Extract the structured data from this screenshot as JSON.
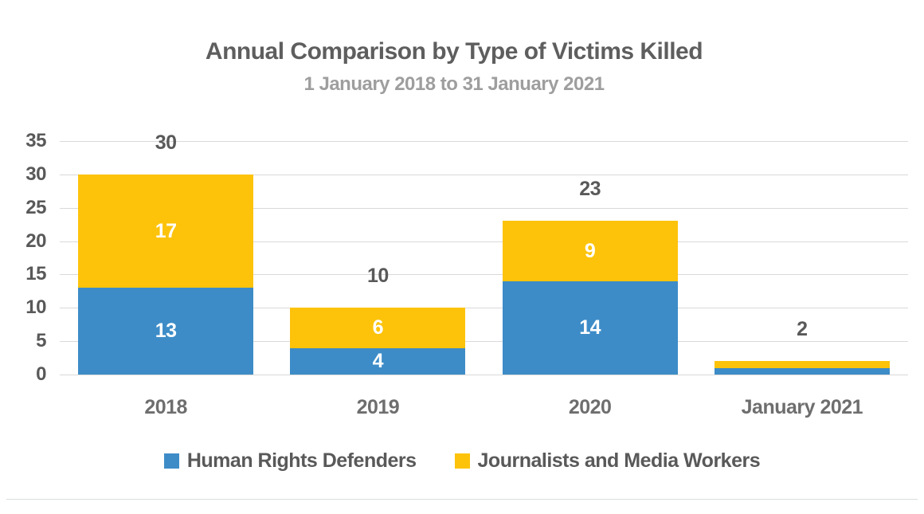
{
  "chart_data": {
    "type": "bar",
    "stacked": true,
    "title": "Annual Comparison by Type of Victims Killed",
    "subtitle": "1 January 2018 to 31 January 2021",
    "categories": [
      "2018",
      "2019",
      "2020",
      "January 2021"
    ],
    "series": [
      {
        "name": "Human Rights Defenders",
        "color": "#3D8CC7",
        "values": [
          13,
          4,
          14,
          1
        ]
      },
      {
        "name": "Journalists and Media Workers",
        "color": "#FDC30B",
        "values": [
          17,
          6,
          9,
          1
        ]
      }
    ],
    "totals": [
      30,
      10,
      23,
      2
    ],
    "segment_labels": [
      [
        "13",
        "17"
      ],
      [
        "4",
        "6"
      ],
      [
        "14",
        "9"
      ],
      [
        "",
        ""
      ]
    ],
    "y_axis": {
      "min": 0,
      "max": 35,
      "step": 5,
      "ticks": [
        "35",
        "30",
        "25",
        "20",
        "15",
        "10",
        "5",
        "0"
      ]
    },
    "ylim": [
      0,
      35
    ],
    "xlabel": "",
    "ylabel": "",
    "grid": "horizontal-gridlines",
    "legend_position": "bottom"
  },
  "colors": {
    "series_blue": "#3D8CC7",
    "series_yellow": "#FDC30B",
    "title_text": "#5E5E5E",
    "subtitle_text": "#9E9E9E",
    "axis_text": "#595959",
    "x_axis_text": "#6E6E6E",
    "bar_value_text": "#FFFFFF",
    "gridline": "#D9D9D9",
    "bottom_divider": "#D8DDDE"
  }
}
